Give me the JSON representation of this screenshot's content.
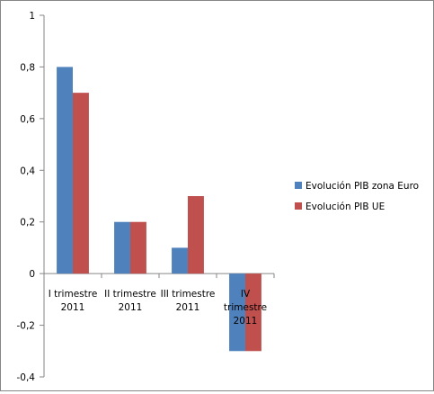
{
  "chart_data": {
    "type": "bar",
    "categories": [
      [
        "I trimestre",
        "2011"
      ],
      [
        "II trimestre",
        "2011"
      ],
      [
        "III trimestre",
        "2011"
      ],
      [
        "IV",
        "trimestre",
        "2011"
      ]
    ],
    "series": [
      {
        "name": "Evolución PIB zona Euro",
        "values": [
          0.8,
          0.2,
          0.1,
          -0.3
        ],
        "color": "#4F81BD"
      },
      {
        "name": "Evolución PIB UE",
        "values": [
          0.7,
          0.2,
          0.3,
          -0.3
        ],
        "color": "#C0504D"
      }
    ],
    "ylim": [
      -0.4,
      1
    ],
    "yticks": [
      1,
      0.8,
      0.6,
      0.4,
      0.2,
      0,
      -0.2,
      -0.4
    ],
    "ytick_labels": [
      "1",
      "0,8",
      "0,6",
      "0,4",
      "0,2",
      "0",
      "-0,2",
      "-0,4"
    ],
    "grid": false,
    "legend_position": "right"
  }
}
